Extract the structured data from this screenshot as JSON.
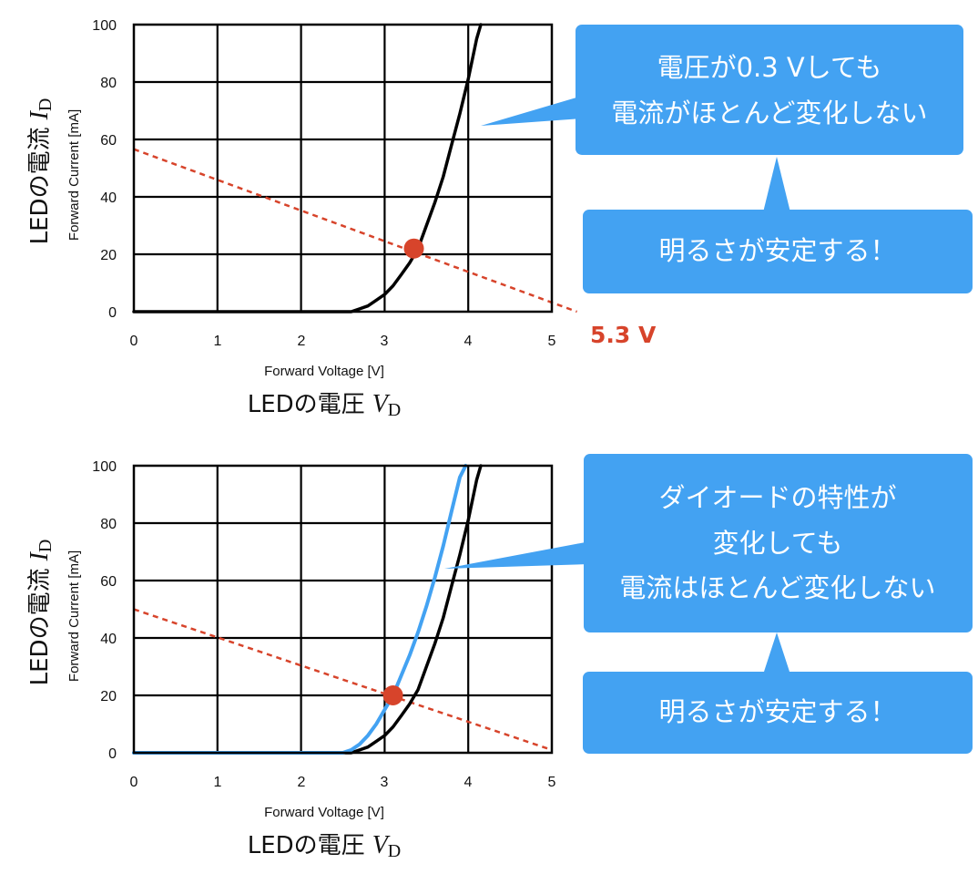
{
  "colors": {
    "callout": "#43a2f2",
    "callout_text": "#ffffff",
    "load_line": "#d7442b",
    "operating_point": "#d7442b",
    "curve_original": "#000000",
    "curve_shifted": "#43a2f2",
    "grid": "#000000"
  },
  "chart_data": [
    {
      "type": "line",
      "x_ticks": [
        "0",
        "1",
        "2",
        "3",
        "4",
        "5"
      ],
      "y_ticks": [
        "0",
        "20",
        "40",
        "60",
        "80",
        "100"
      ],
      "xlim": [
        0,
        5
      ],
      "ylim": [
        0,
        100
      ],
      "grid": true,
      "xlabel_en": "Forward Voltage [V]",
      "ylabel_en": "Forward Current [mA]",
      "xlabel_jp": "LEDの電圧",
      "xlabel_var": "V",
      "xlabel_sub": "D",
      "ylabel_jp": "LEDの電流",
      "ylabel_var": "I",
      "ylabel_sub": "D",
      "series": [
        {
          "color": "#000000",
          "x": [
            0,
            2.6,
            2.7,
            2.8,
            2.9,
            3.0,
            3.1,
            3.2,
            3.3,
            3.4,
            3.5,
            3.6,
            3.7,
            3.8,
            3.9,
            4.0,
            4.1,
            4.15
          ],
          "y": [
            0,
            0,
            1,
            2,
            4,
            6,
            9,
            13,
            17,
            22,
            30,
            38,
            47,
            58,
            69,
            81,
            95,
            100
          ]
        }
      ],
      "load_line": {
        "x": [
          0,
          5.3
        ],
        "y": [
          56.6,
          0
        ]
      },
      "operating_point": {
        "x": 3.35,
        "y": 22
      },
      "annotations": [
        {
          "text": "5.3 V"
        }
      ],
      "callouts": [
        {
          "lines": [
            "電圧が0.3 Vしても",
            "電流がほとんど変化しない"
          ]
        },
        {
          "lines": [
            "明るさが安定する！"
          ]
        }
      ]
    },
    {
      "type": "line",
      "x_ticks": [
        "0",
        "1",
        "2",
        "3",
        "4",
        "5"
      ],
      "y_ticks": [
        "0",
        "20",
        "40",
        "60",
        "80",
        "100"
      ],
      "xlim": [
        0,
        5
      ],
      "ylim": [
        0,
        100
      ],
      "grid": true,
      "xlabel_en": "Forward Voltage [V]",
      "ylabel_en": "Forward Current [mA]",
      "xlabel_jp": "LEDの電圧",
      "xlabel_var": "V",
      "xlabel_sub": "D",
      "ylabel_jp": "LEDの電流",
      "ylabel_var": "I",
      "ylabel_sub": "D",
      "series": [
        {
          "color": "#000000",
          "x": [
            0,
            2.6,
            2.7,
            2.8,
            2.9,
            3.0,
            3.1,
            3.2,
            3.3,
            3.4,
            3.5,
            3.6,
            3.7,
            3.8,
            3.9,
            4.0,
            4.1,
            4.15
          ],
          "y": [
            0,
            0,
            1,
            2,
            4,
            6,
            9,
            13,
            17,
            22,
            30,
            38,
            47,
            58,
            69,
            81,
            95,
            100
          ]
        },
        {
          "color": "#43a2f2",
          "x": [
            0,
            2.5,
            2.6,
            2.7,
            2.8,
            2.9,
            3.0,
            3.1,
            3.2,
            3.3,
            3.4,
            3.5,
            3.6,
            3.7,
            3.8,
            3.9,
            3.97
          ],
          "y": [
            0,
            0,
            1,
            3,
            6,
            10,
            15,
            20,
            27,
            34,
            42,
            51,
            61,
            72,
            84,
            96,
            100
          ]
        }
      ],
      "load_line": {
        "x": [
          0,
          5
        ],
        "y": [
          50,
          1
        ]
      },
      "operating_point": {
        "x": 3.1,
        "y": 20
      },
      "annotations": [],
      "callouts": [
        {
          "lines": [
            "ダイオードの特性が",
            "変化しても",
            "電流はほとんど変化しない"
          ]
        },
        {
          "lines": [
            "明るさが安定する！"
          ]
        }
      ]
    }
  ]
}
